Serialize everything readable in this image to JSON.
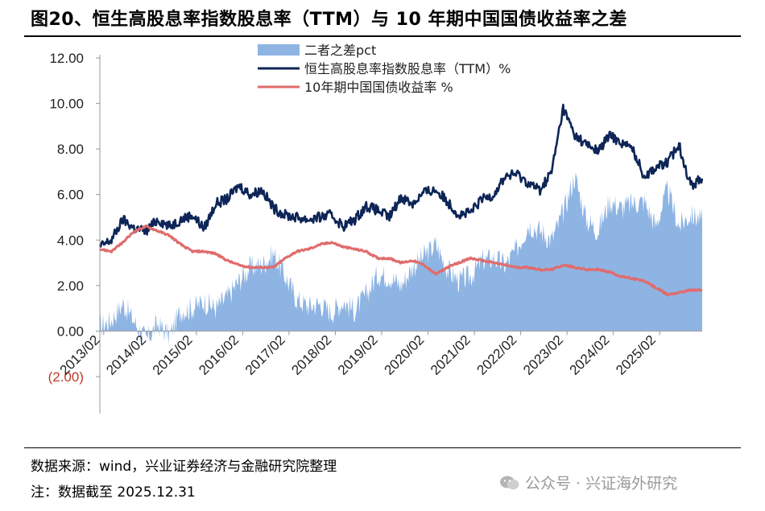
{
  "header": {
    "title": "图20、恒生高股息率指数股息率（TTM）与 10 年期中国国债收益率之差"
  },
  "footer": {
    "source": "数据来源：wind，兴业证券经济与金融研究院整理",
    "note": "注：数据截至 2025.12.31",
    "watermark": "公众号 · 兴证海外研究"
  },
  "chart_data": {
    "type": "line",
    "title": "恒生高股息率指数股息率（TTM）与 10 年期中国国债收益率之差",
    "xlabel": "",
    "ylabel": "",
    "ylim": [
      -2,
      12
    ],
    "yticks": [
      -2,
      0,
      2,
      4,
      6,
      8,
      10,
      12
    ],
    "ytick_labels": [
      "(2.00)",
      "0.00",
      "2.00",
      "4.00",
      "6.00",
      "8.00",
      "10.00",
      "12.00"
    ],
    "xticks": [
      2013.083,
      2014.083,
      2015.083,
      2016.083,
      2017.083,
      2018.083,
      2019.083,
      2020.083,
      2021.083,
      2022.083,
      2023.083,
      2024.083,
      2025.083
    ],
    "xtick_labels": [
      "2013/02",
      "2014/02",
      "2015/02",
      "2016/02",
      "2017/02",
      "2018/02",
      "2019/02",
      "2020/02",
      "2021/02",
      "2022/02",
      "2023/02",
      "2024/02",
      "2025/02"
    ],
    "xlim": [
      2013.0,
      2026.0
    ],
    "grid": false,
    "legend_position": "top-center",
    "x": [
      2013.0,
      2013.25,
      2013.5,
      2013.75,
      2014.0,
      2014.25,
      2014.5,
      2014.75,
      2015.0,
      2015.25,
      2015.5,
      2015.75,
      2016.0,
      2016.25,
      2016.5,
      2016.75,
      2017.0,
      2017.25,
      2017.5,
      2017.75,
      2018.0,
      2018.25,
      2018.5,
      2018.75,
      2019.0,
      2019.25,
      2019.5,
      2019.75,
      2020.0,
      2020.25,
      2020.5,
      2020.75,
      2021.0,
      2021.25,
      2021.5,
      2021.75,
      2022.0,
      2022.25,
      2022.5,
      2022.75,
      2023.0,
      2023.25,
      2023.5,
      2023.75,
      2024.0,
      2024.25,
      2024.5,
      2024.75,
      2025.0,
      2025.25,
      2025.5,
      2025.75,
      2026.0
    ],
    "series": [
      {
        "name": "二者之差pct",
        "style": "area",
        "color": "#8eb4e3",
        "values": [
          0.2,
          0.5,
          1.2,
          0.4,
          -0.4,
          0.3,
          -0.2,
          0.9,
          1.0,
          1.3,
          1.0,
          1.5,
          2.2,
          2.8,
          2.9,
          3.4,
          2.4,
          1.4,
          1.1,
          1.2,
          0.8,
          1.3,
          0.9,
          1.6,
          2.5,
          2.4,
          2.0,
          2.8,
          3.3,
          3.8,
          2.7,
          2.2,
          2.4,
          3.1,
          3.2,
          2.9,
          3.6,
          4.7,
          4.4,
          4.0,
          5.2,
          6.8,
          4.9,
          4.4,
          5.7,
          5.4,
          5.6,
          5.7,
          4.6,
          6.2,
          4.6,
          5.1,
          4.9
        ]
      },
      {
        "name": "恒生高股息率指数股息率（TTM）%",
        "style": "line",
        "color": "#0d2557",
        "values": [
          3.7,
          4.0,
          4.9,
          4.5,
          4.4,
          4.9,
          4.6,
          4.9,
          5.1,
          4.5,
          5.6,
          5.8,
          6.4,
          6.0,
          6.2,
          5.4,
          5.1,
          5.0,
          4.9,
          5.0,
          5.1,
          4.6,
          4.9,
          5.5,
          5.3,
          5.0,
          5.9,
          5.6,
          6.1,
          6.2,
          5.7,
          5.1,
          5.2,
          5.8,
          6.0,
          6.8,
          6.9,
          6.5,
          6.2,
          7.0,
          9.8,
          8.6,
          8.2,
          7.9,
          8.6,
          8.3,
          8.0,
          6.8,
          7.2,
          7.4,
          8.2,
          6.4,
          6.7
        ]
      },
      {
        "name": "10年期中国国债收益率 %",
        "style": "line",
        "color": "#e06c6c",
        "values": [
          3.6,
          3.5,
          3.9,
          4.4,
          4.6,
          4.4,
          4.2,
          3.8,
          3.5,
          3.5,
          3.4,
          3.1,
          2.9,
          2.8,
          2.8,
          2.8,
          3.2,
          3.5,
          3.6,
          3.8,
          3.9,
          3.7,
          3.6,
          3.5,
          3.2,
          3.2,
          3.0,
          3.1,
          2.9,
          2.5,
          2.8,
          3.0,
          3.2,
          3.1,
          3.0,
          2.9,
          2.8,
          2.8,
          2.7,
          2.7,
          2.9,
          2.8,
          2.7,
          2.7,
          2.6,
          2.4,
          2.3,
          2.2,
          1.9,
          1.6,
          1.7,
          1.8,
          1.8
        ]
      }
    ]
  }
}
